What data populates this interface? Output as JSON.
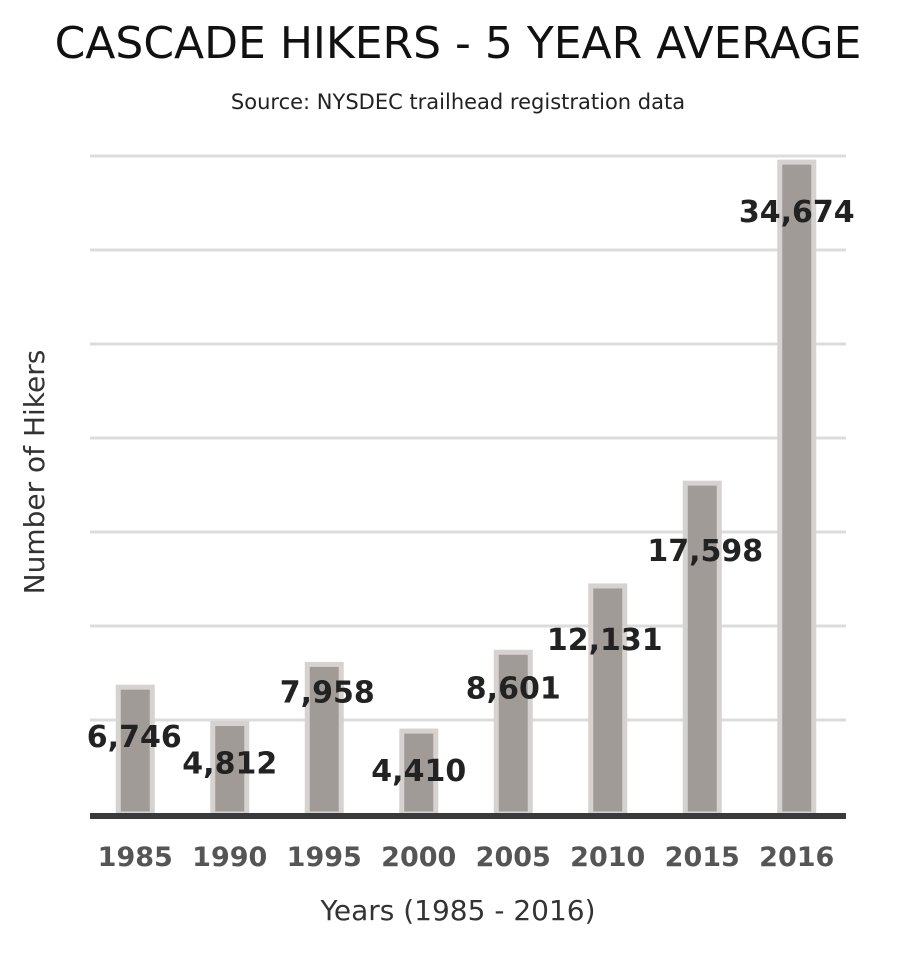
{
  "chart_data": {
    "type": "bar",
    "title": "CASCADE HIKERS - 5 YEAR AVERAGE",
    "subtitle": "Source: NYSDEC trailhead registration data",
    "xlabel": "Years (1985 - 2016)",
    "ylabel": "Number of Hikers",
    "categories": [
      "1985",
      "1990",
      "1995",
      "2000",
      "2005",
      "2010",
      "2015",
      "2016"
    ],
    "values": [
      6746,
      4812,
      7958,
      4410,
      8601,
      12131,
      17598,
      34674
    ],
    "data_labels": [
      "6,746",
      "4,812",
      "7,958",
      "4,410",
      "8,601",
      "12,131",
      "17,598",
      "34,674"
    ],
    "ylim": [
      0,
      35000
    ],
    "grid": true,
    "colors": {
      "bar": "#a19b98",
      "bar_edge": "#d6d2cf",
      "grid": "#dcdcdc",
      "axis": "#3a3a3a"
    }
  }
}
